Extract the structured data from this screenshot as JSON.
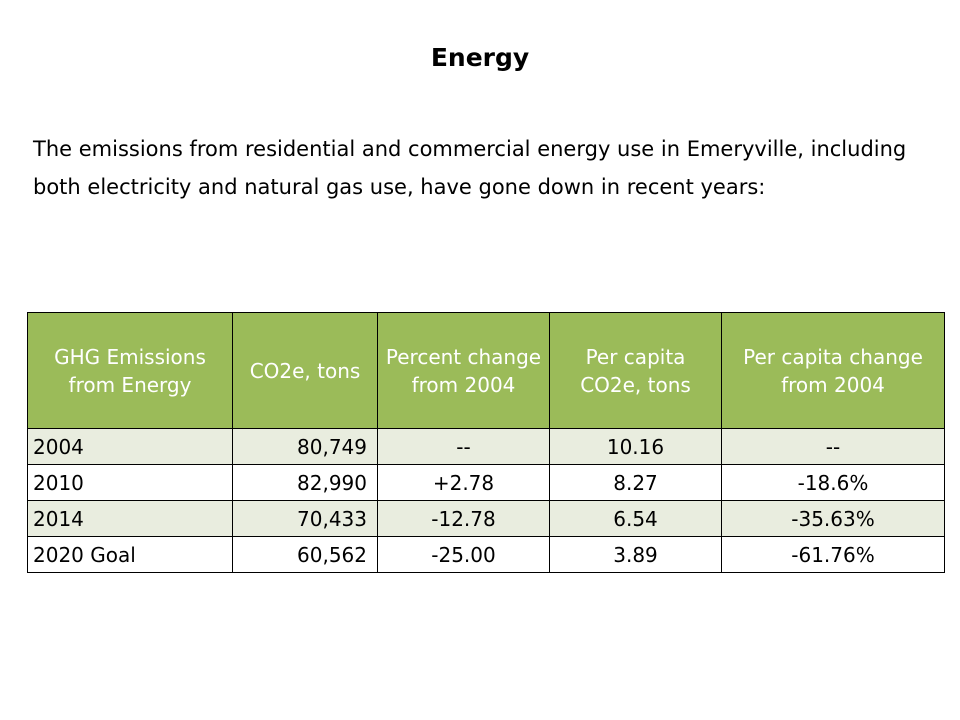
{
  "slide": {
    "title": "Energy",
    "intro": "The emissions from residential and commercial energy use in Emeryville, including both electricity and natural gas use, have gone down in recent years:"
  },
  "table": {
    "header_color": "#9bbb59",
    "band_color": "#e9eddf",
    "headers": [
      "GHG Emissions from Energy",
      "CO2e, tons",
      "Percent change from 2004",
      "Per capita CO2e, tons",
      "Per capita change from 2004"
    ],
    "rows": [
      [
        "2004",
        "80,749",
        "--",
        "10.16",
        "--"
      ],
      [
        "2010",
        "82,990",
        "+2.78",
        "8.27",
        "-18.6%"
      ],
      [
        "2014",
        "70,433",
        "-12.78",
        "6.54",
        "-35.63%"
      ],
      [
        "2020 Goal",
        "60,562",
        "-25.00",
        "3.89",
        "-61.76%"
      ]
    ]
  }
}
